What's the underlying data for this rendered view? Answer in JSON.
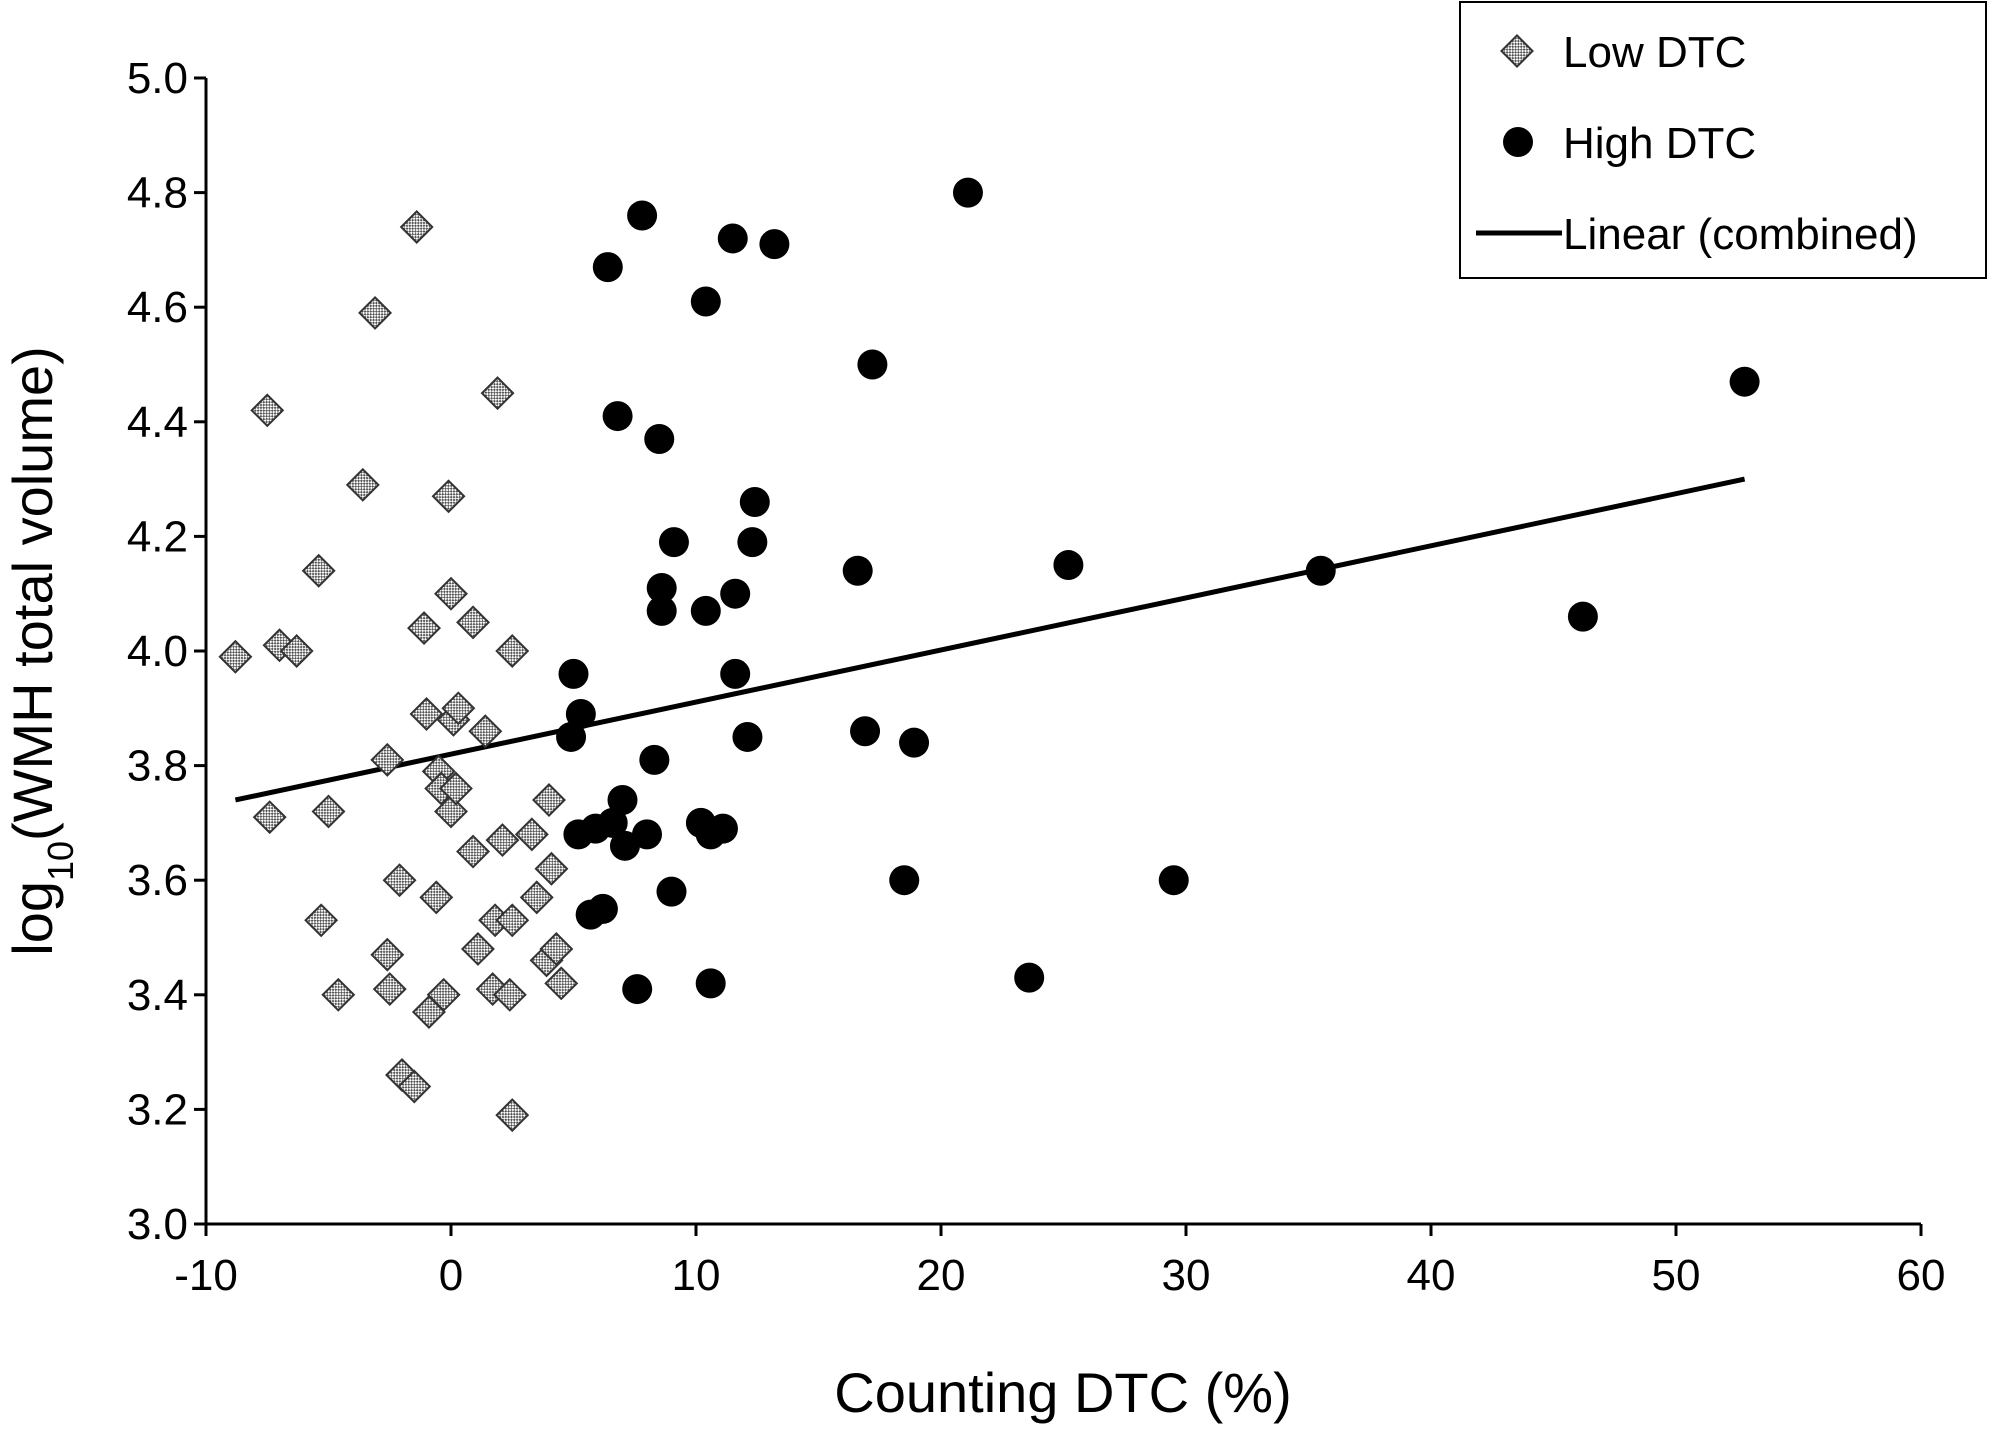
{
  "chart_data": {
    "type": "scatter",
    "title": "",
    "xlabel": "Counting DTC (%)",
    "ylabel": {
      "prefix": "log",
      "subscript": "10",
      "suffix": "(WMH total volume)"
    },
    "xlim": [
      -10,
      60
    ],
    "ylim": [
      3.0,
      5.0
    ],
    "xticks": [
      "-10",
      "0",
      "10",
      "20",
      "30",
      "40",
      "50",
      "60"
    ],
    "yticks": [
      "3.0",
      "3.2",
      "3.4",
      "3.6",
      "3.8",
      "4.0",
      "4.2",
      "4.4",
      "4.6",
      "4.8",
      "5.0"
    ],
    "grid": false,
    "legend_position": "top-right",
    "series": [
      {
        "name": "Low DTC",
        "marker": "diamond-hatched",
        "points": [
          [
            -8.8,
            3.99
          ],
          [
            -7.5,
            4.42
          ],
          [
            -7.0,
            4.01
          ],
          [
            -6.3,
            4.0
          ],
          [
            -7.4,
            3.71
          ],
          [
            -5.4,
            4.14
          ],
          [
            -5.0,
            3.72
          ],
          [
            -5.3,
            3.53
          ],
          [
            -4.6,
            3.4
          ],
          [
            -3.6,
            4.29
          ],
          [
            -3.1,
            4.59
          ],
          [
            -2.6,
            3.81
          ],
          [
            -2.6,
            3.47
          ],
          [
            -2.5,
            3.41
          ],
          [
            -2.1,
            3.6
          ],
          [
            -2.0,
            3.26
          ],
          [
            -1.5,
            3.24
          ],
          [
            -1.4,
            4.74
          ],
          [
            -1.1,
            4.04
          ],
          [
            -1.0,
            3.89
          ],
          [
            -0.9,
            3.37
          ],
          [
            -0.6,
            3.57
          ],
          [
            -0.5,
            3.79
          ],
          [
            -0.4,
            3.76
          ],
          [
            -0.3,
            3.4
          ],
          [
            -0.1,
            4.27
          ],
          [
            0.0,
            4.1
          ],
          [
            0.0,
            3.72
          ],
          [
            0.1,
            3.88
          ],
          [
            0.2,
            3.76
          ],
          [
            0.3,
            3.9
          ],
          [
            0.9,
            4.05
          ],
          [
            0.9,
            3.65
          ],
          [
            1.1,
            3.48
          ],
          [
            1.4,
            3.86
          ],
          [
            1.7,
            3.41
          ],
          [
            1.8,
            3.53
          ],
          [
            1.9,
            4.45
          ],
          [
            2.1,
            3.67
          ],
          [
            2.4,
            3.4
          ],
          [
            2.5,
            3.53
          ],
          [
            2.5,
            3.19
          ],
          [
            2.5,
            4.0
          ],
          [
            3.3,
            3.68
          ],
          [
            3.5,
            3.57
          ],
          [
            3.9,
            3.46
          ],
          [
            4.0,
            3.74
          ],
          [
            4.1,
            3.62
          ],
          [
            4.3,
            3.48
          ],
          [
            4.5,
            3.42
          ]
        ]
      },
      {
        "name": "High DTC",
        "marker": "circle",
        "points": [
          [
            4.9,
            3.85
          ],
          [
            5.0,
            3.96
          ],
          [
            5.2,
            3.68
          ],
          [
            5.3,
            3.89
          ],
          [
            5.7,
            3.54
          ],
          [
            5.9,
            3.69
          ],
          [
            6.2,
            3.55
          ],
          [
            6.4,
            4.67
          ],
          [
            6.6,
            3.7
          ],
          [
            6.8,
            4.41
          ],
          [
            7.0,
            3.74
          ],
          [
            7.1,
            3.66
          ],
          [
            7.6,
            3.41
          ],
          [
            7.8,
            4.76
          ],
          [
            8.0,
            3.68
          ],
          [
            8.3,
            3.81
          ],
          [
            8.5,
            4.37
          ],
          [
            8.6,
            4.11
          ],
          [
            8.6,
            4.07
          ],
          [
            9.0,
            3.58
          ],
          [
            9.1,
            4.19
          ],
          [
            10.2,
            3.7
          ],
          [
            10.4,
            4.61
          ],
          [
            10.4,
            4.07
          ],
          [
            10.6,
            3.68
          ],
          [
            10.6,
            3.42
          ],
          [
            11.1,
            3.69
          ],
          [
            11.5,
            4.72
          ],
          [
            11.6,
            3.96
          ],
          [
            11.6,
            4.1
          ],
          [
            12.1,
            3.85
          ],
          [
            12.3,
            4.19
          ],
          [
            12.4,
            4.26
          ],
          [
            13.2,
            4.71
          ],
          [
            16.6,
            4.14
          ],
          [
            16.9,
            3.86
          ],
          [
            17.2,
            4.5
          ],
          [
            18.5,
            3.6
          ],
          [
            18.9,
            3.84
          ],
          [
            21.1,
            4.8
          ],
          [
            23.6,
            3.43
          ],
          [
            25.2,
            4.15
          ],
          [
            29.5,
            3.6
          ],
          [
            35.5,
            4.14
          ],
          [
            46.2,
            4.06
          ],
          [
            52.8,
            4.47
          ]
        ]
      }
    ],
    "trendline": {
      "name": "Linear (combined)",
      "type": "linear",
      "x_start": -8.8,
      "y_start": 3.74,
      "x_end": 52.8,
      "y_end": 4.3
    }
  }
}
